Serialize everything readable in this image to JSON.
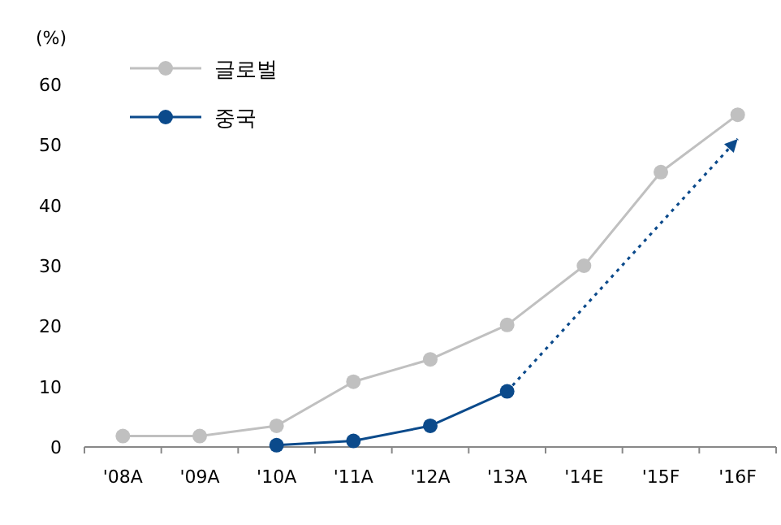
{
  "chart_data": {
    "type": "line",
    "ylabel": "(%)",
    "categories": [
      "'08A",
      "'09A",
      "'10A",
      "'11A",
      "'12A",
      "'13A",
      "'14E",
      "'15F",
      "'16F"
    ],
    "series": [
      {
        "name": "글로벌",
        "color": "#c0c0c0",
        "values": [
          1.8,
          1.8,
          3.5,
          10.8,
          14.5,
          20.2,
          30,
          45.5,
          55
        ]
      },
      {
        "name": "중국",
        "color": "#0b4a8b",
        "values": [
          null,
          null,
          0.3,
          1.0,
          3.5,
          9.2,
          null,
          null,
          null
        ]
      },
      {
        "color": "#0b4a8b",
        "values": [
          null,
          null,
          null,
          null,
          null,
          9.2,
          null,
          null,
          51
        ],
        "line_style": "dotted"
      }
    ],
    "ylim": [
      0,
      60
    ],
    "yticks": [
      0,
      10,
      20,
      30,
      40,
      50,
      60
    ],
    "marker": "circle",
    "line_style": "solid",
    "legend": "top left",
    "grid": false
  }
}
